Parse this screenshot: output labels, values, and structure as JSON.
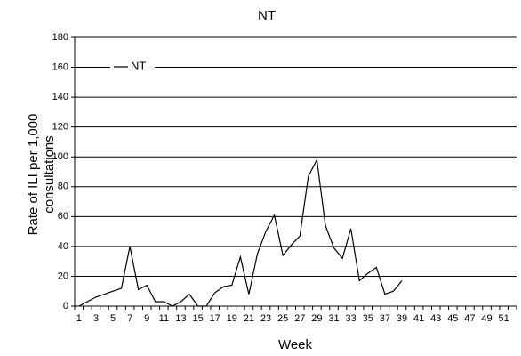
{
  "chart_data": {
    "type": "line",
    "title": "NT",
    "x_label": "Week",
    "y_label": "Rate of ILI per 1,000 consultations",
    "categories": [
      "1",
      null,
      "3",
      null,
      "5",
      null,
      "7",
      null,
      "9",
      null,
      "11",
      null,
      "13",
      null,
      "15",
      null,
      "17",
      null,
      "19",
      null,
      "21",
      null,
      "23",
      null,
      "25",
      null,
      "27",
      null,
      "29",
      null,
      "31",
      null,
      "33",
      null,
      "35",
      null,
      "37",
      null,
      "39",
      null,
      "41",
      null,
      "43",
      null,
      "45",
      null,
      "47",
      null,
      "49",
      null,
      "51",
      null
    ],
    "series": [
      {
        "name": "NT",
        "color": "#000000",
        "values": [
          0,
          3,
          6,
          8,
          10,
          12,
          40,
          11,
          14,
          3,
          3,
          0,
          3,
          8,
          0,
          0,
          9,
          13,
          14,
          33,
          8,
          35,
          50,
          61,
          34,
          41,
          47,
          87,
          98,
          54,
          39,
          32,
          52,
          17,
          22,
          26,
          8,
          10,
          17,
          null,
          null,
          null,
          null,
          null,
          null,
          null,
          null,
          null,
          null,
          null,
          null,
          null
        ]
      }
    ],
    "ylim": [
      0,
      180
    ],
    "yticks": [
      0,
      20,
      40,
      60,
      80,
      100,
      120,
      140,
      160,
      180
    ],
    "grid": true,
    "legend": "upper left"
  }
}
